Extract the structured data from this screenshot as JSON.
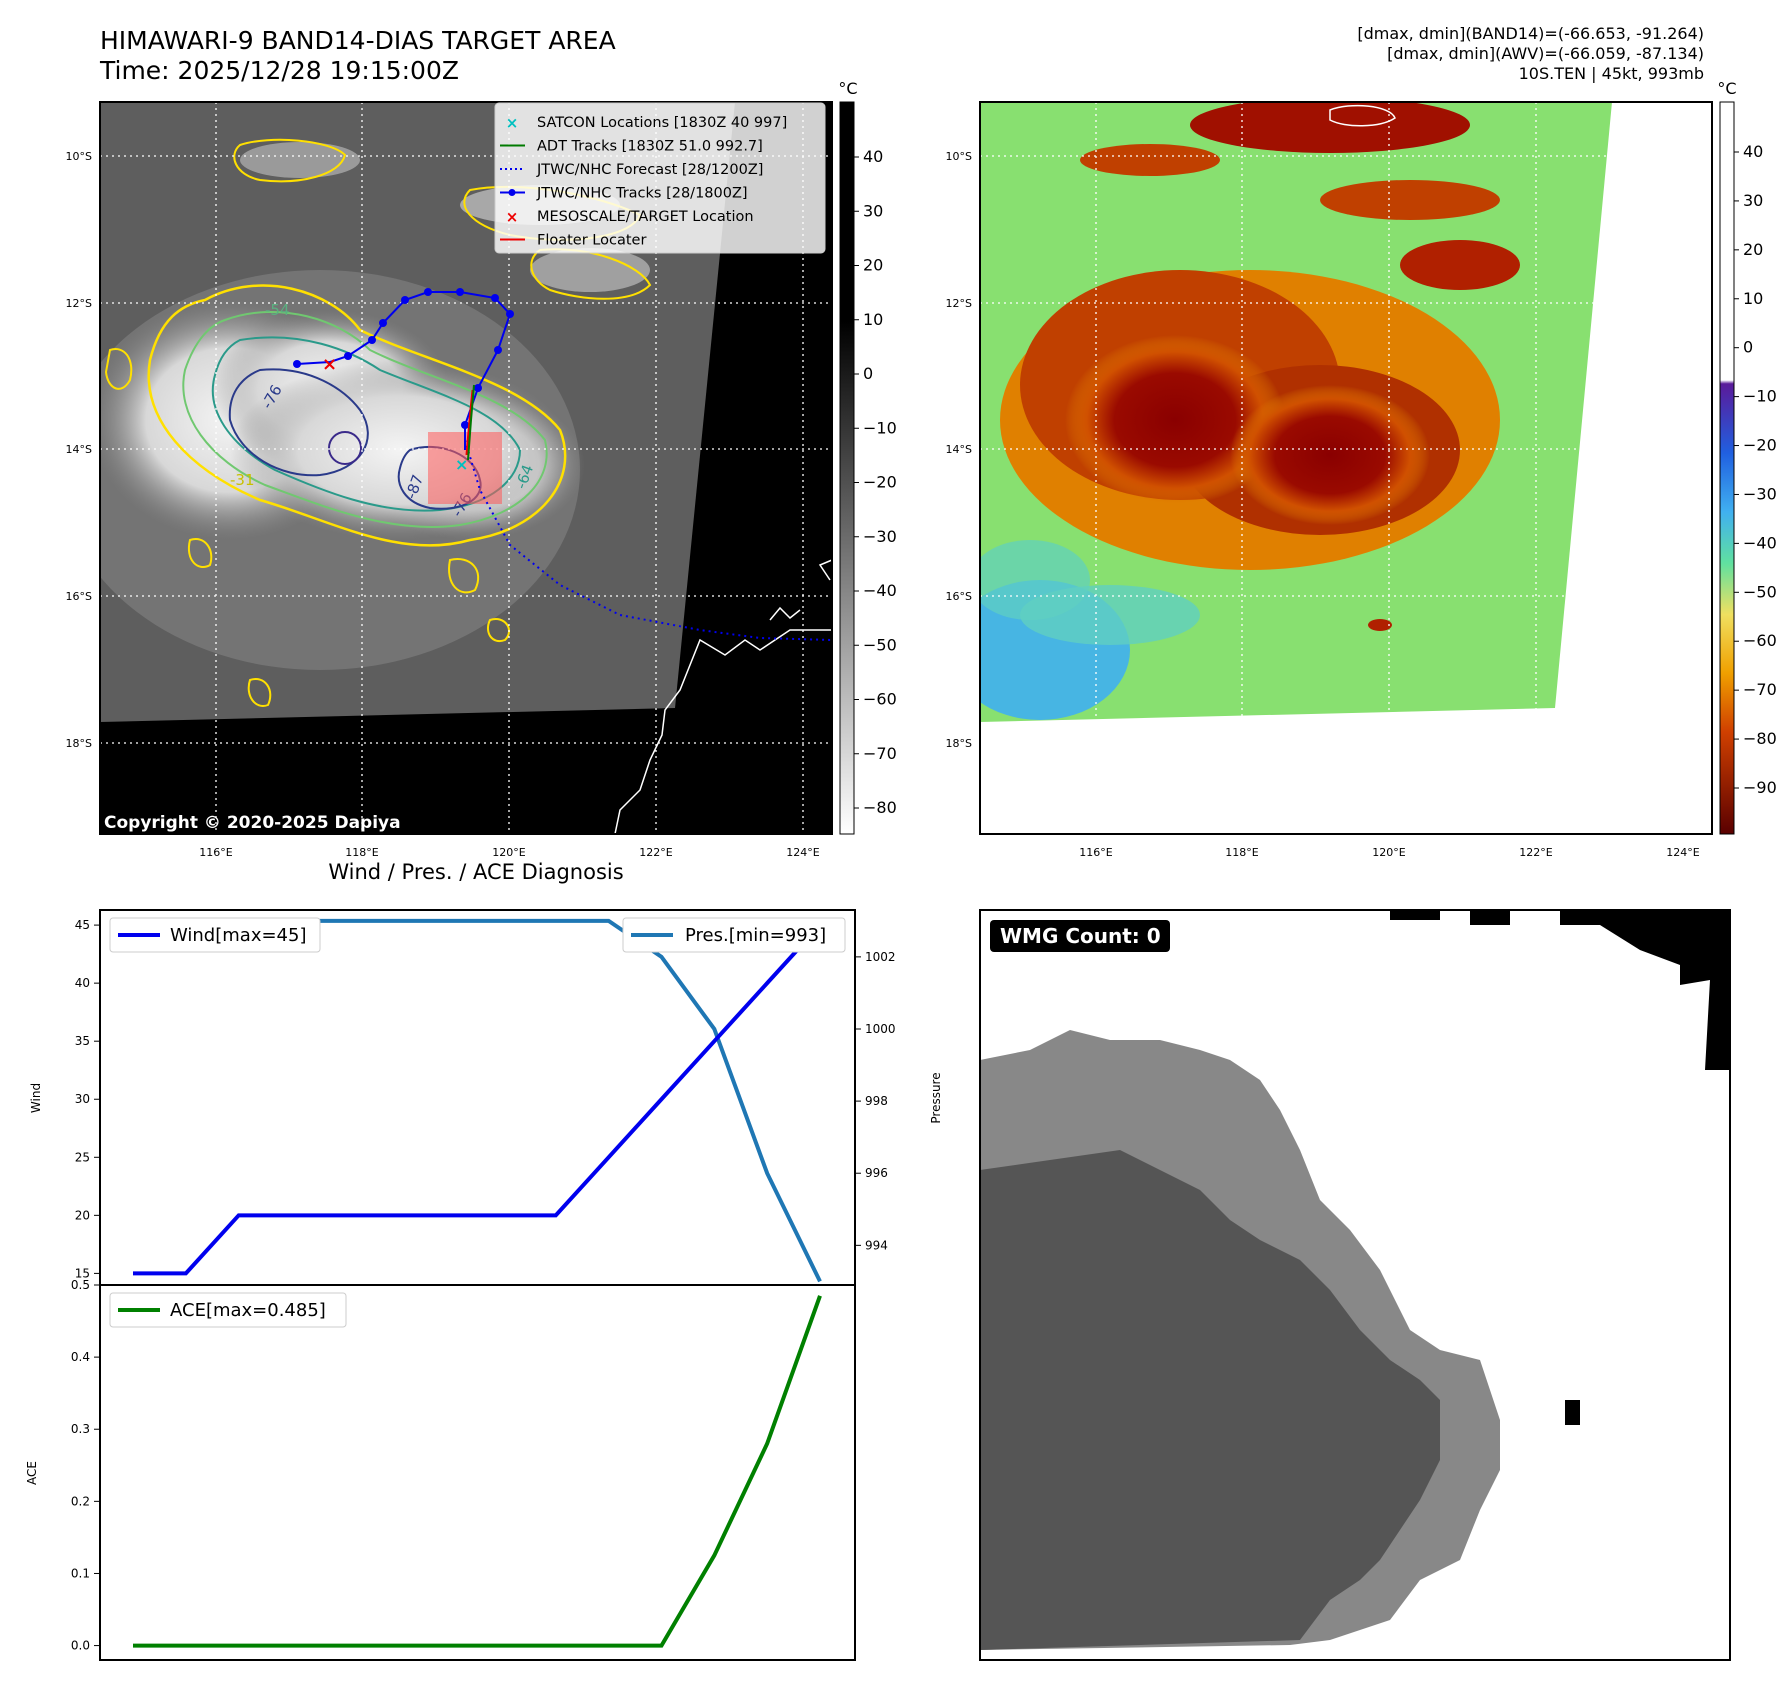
{
  "header": {
    "title_line1": "HIMAWARI-9 BAND14-DIAS TARGET AREA",
    "title_line2": "Time: 2025/12/28 19:15:00Z",
    "stat_band14": "[dmax, dmin](BAND14)=(-66.653, -91.264)",
    "stat_awv": "[dmax, dmin](AWV)=(-66.059, -87.134)",
    "storm_info": "10S.TEN | 45kt, 993mb"
  },
  "map_axes": {
    "lat_labels": [
      "10°S",
      "12°S",
      "14°S",
      "16°S",
      "18°S"
    ],
    "lon_labels": [
      "116°E",
      "118°E",
      "120°E",
      "122°E",
      "124°E"
    ]
  },
  "ir_panel": {
    "copyright": "Copyright © 2020-2025 Dapiya",
    "contour_labels": [
      "-76",
      "-54",
      "-31",
      "-76",
      "-87",
      "-76",
      "-64",
      "-31",
      "-76"
    ],
    "legend": [
      {
        "label": "SATCON Locations [1830Z 40 997]",
        "marker": "x",
        "color": "#00c0c0"
      },
      {
        "label": "ADT Tracks [1830Z 51.0 992.7]",
        "marker": "line",
        "color": "#007a00"
      },
      {
        "label": "JTWC/NHC Forecast [28/1200Z]",
        "marker": "dotted",
        "color": "#0000ee"
      },
      {
        "label": "JTWC/NHC Tracks [28/1800Z]",
        "marker": "line-dot",
        "color": "#0000ee"
      },
      {
        "label": "MESOSCALE/TARGET Location",
        "marker": "x",
        "color": "#ee0000"
      },
      {
        "label": "Floater Locater",
        "marker": "line",
        "color": "#ee0000"
      }
    ],
    "colorbar": {
      "unit": "°C",
      "ticks": [
        "40",
        "30",
        "20",
        "10",
        "0",
        "−10",
        "−20",
        "−30",
        "−40",
        "−50",
        "−60",
        "−70",
        "−80"
      ]
    }
  },
  "awv_panel": {
    "colorbar": {
      "unit": "°C",
      "ticks": [
        "40",
        "30",
        "20",
        "10",
        "0",
        "−10",
        "−20",
        "−30",
        "−40",
        "−50",
        "−60",
        "−70",
        "−80",
        "−90"
      ],
      "colors": [
        "#5a0000",
        "#b02000",
        "#e06000",
        "#f0a000",
        "#f0e060",
        "#80e060",
        "#40d0a0",
        "#40b0f0",
        "#2060e0",
        "#5a1a9a"
      ]
    }
  },
  "diagnosis": {
    "title": "Wind / Pres. / ACE Diagnosis",
    "ylabel_wind": "Wind",
    "ylabel_pressure": "Pressure",
    "ylabel_ace": "ACE",
    "legend_wind": "Wind[max=45]",
    "legend_pres": "Pres.[min=993]",
    "legend_ace": "ACE[max=0.485]",
    "wind_ticks": [
      "15",
      "20",
      "25",
      "30",
      "35",
      "40",
      "45"
    ],
    "pres_ticks": [
      "994",
      "996",
      "998",
      "1000",
      "1002"
    ],
    "ace_ticks": [
      "0.0",
      "0.1",
      "0.2",
      "0.3",
      "0.4",
      "0.5"
    ]
  },
  "wmg_panel": {
    "label": "WMG Count: 0"
  },
  "chart_data": [
    {
      "type": "line",
      "title": "Wind / Pres. / ACE Diagnosis",
      "ylabel": "Wind",
      "ylim": [
        14.0,
        46.3
      ],
      "x": [
        0,
        1,
        2,
        3,
        4,
        5,
        6,
        7,
        8,
        9,
        10,
        11,
        12,
        13
      ],
      "series": [
        {
          "name": "Wind[max=45]",
          "color": "#0000ee",
          "values": [
            15,
            15,
            20,
            20,
            20,
            20,
            20,
            20,
            20,
            25,
            30,
            35,
            40,
            45
          ]
        },
        {
          "name": "Pres.[min=993]",
          "axis": "right",
          "color": "#1f77b4",
          "values": [
            1003,
            1003,
            1003,
            1003,
            1003,
            1003,
            1003,
            1003,
            1003,
            1003,
            1002,
            1000,
            996,
            993
          ]
        }
      ],
      "y2label": "Pressure",
      "y2lim": [
        992.9,
        1003.3
      ]
    },
    {
      "type": "line",
      "ylabel": "ACE",
      "ylim": [
        -0.02,
        0.5
      ],
      "x": [
        0,
        1,
        2,
        3,
        4,
        5,
        6,
        7,
        8,
        9,
        10,
        11,
        12,
        13
      ],
      "series": [
        {
          "name": "ACE[max=0.485]",
          "color": "#008000",
          "values": [
            0,
            0,
            0,
            0,
            0,
            0,
            0,
            0,
            0,
            0,
            0,
            0.125,
            0.28,
            0.485
          ]
        }
      ]
    }
  ]
}
